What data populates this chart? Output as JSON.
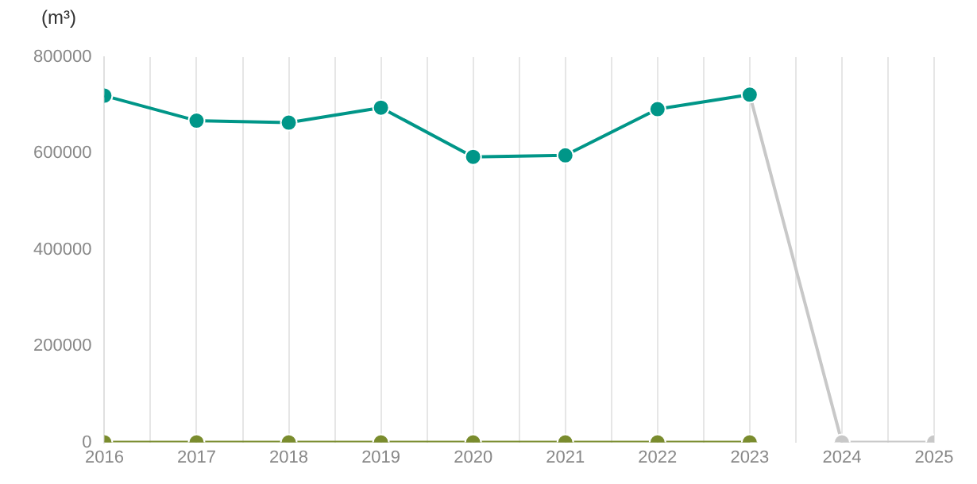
{
  "chart_data": {
    "type": "line",
    "ylabel": "(m³)",
    "x": [
      2016,
      2017,
      2018,
      2019,
      2020,
      2021,
      2022,
      2023
    ],
    "series": [
      {
        "color": "#009688",
        "values": [
          720000,
          668000,
          664000,
          695000,
          593000,
          596000,
          692000,
          722000
        ]
      },
      {
        "color": "#7a8c2e",
        "values": [
          0,
          0,
          0,
          0,
          0,
          0,
          0,
          0
        ]
      },
      {
        "color": "#c8c8c8",
        "x": [
          2023,
          2024,
          2025
        ],
        "values": [
          722000,
          0,
          0
        ]
      }
    ],
    "xlim": [
      2016,
      2025
    ],
    "xticks": [
      2016,
      {
        "value": 2016.5,
        "label": null
      },
      2017,
      {
        "value": 2017.5,
        "label": null
      },
      2018,
      {
        "value": 2018.5,
        "label": null
      },
      2019,
      {
        "value": 2019.5,
        "label": null
      },
      2020,
      {
        "value": 2020.5,
        "label": null
      },
      2021,
      {
        "value": 2021.5,
        "label": null
      },
      2022,
      {
        "value": 2022.5,
        "label": null
      },
      2023,
      {
        "value": 2023.5,
        "label": null
      },
      2024,
      {
        "value": 2024.5,
        "label": null
      },
      2025
    ],
    "ylim": [
      0,
      800000
    ],
    "yticks": [
      0,
      200000,
      400000,
      600000,
      800000
    ],
    "grid": "x",
    "legend": false,
    "marker": "circle",
    "line_style": "solid"
  }
}
